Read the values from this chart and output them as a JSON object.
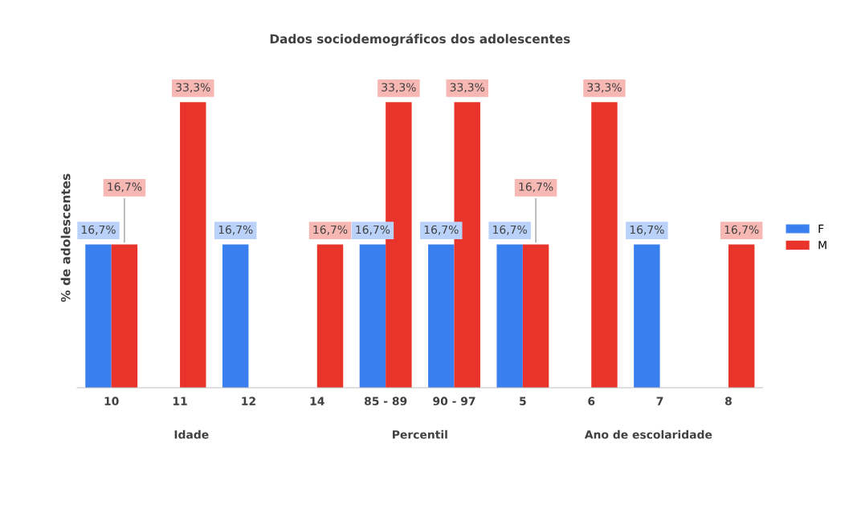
{
  "chart_data": {
    "type": "bar",
    "title": "Dados sociodemográficos dos adolescentes",
    "ylabel": "% de adolescentes",
    "categories": [
      "10",
      "11",
      "12",
      "14",
      "85 - 89",
      "90 - 97",
      "5",
      "6",
      "7",
      "8"
    ],
    "series": [
      {
        "name": "F",
        "color": "#3a7ff0",
        "values": [
          16.7,
          0,
          16.7,
          0,
          16.7,
          16.7,
          16.7,
          0,
          16.7,
          0
        ],
        "value_labels": [
          "16,7%",
          null,
          "16,7%",
          null,
          "16,7%",
          "16,7%",
          "16,7%",
          null,
          "16,7%",
          null
        ]
      },
      {
        "name": "M",
        "color": "#e8342a",
        "values": [
          16.7,
          33.3,
          0,
          16.7,
          33.3,
          33.3,
          16.7,
          33.3,
          0,
          16.7
        ],
        "value_labels": [
          "16,7%",
          "33,3%",
          null,
          "16,7%",
          "33,3%",
          "33,3%",
          "16,7%",
          "33,3%",
          null,
          "16,7%"
        ]
      }
    ],
    "annotations": [
      "Idade",
      "Percentil",
      "Ano de escolaridade"
    ],
    "legend": "right",
    "grid": false
  }
}
